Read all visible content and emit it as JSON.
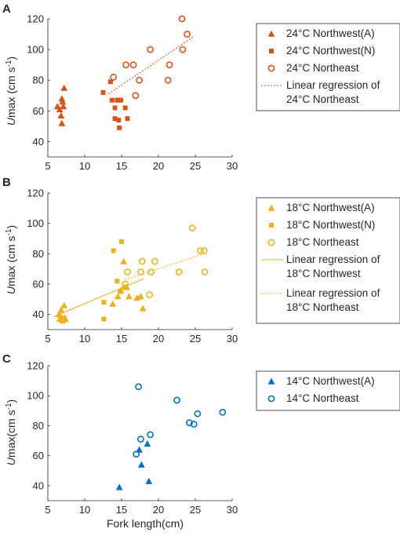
{
  "figure": {
    "x_axis_label": "Fork length(cm)",
    "y_axis_label_italic": "U",
    "y_axis_label_rest": "max (cm s",
    "y_axis_label_sup": "-1",
    "y_axis_label_close": ")",
    "y_axis_label_c_rest": "max(cm s"
  },
  "chart_data": [
    {
      "panel": "A",
      "type": "scatter",
      "xlim": [
        5,
        30
      ],
      "ylim": [
        30,
        120
      ],
      "x_ticks": [
        5,
        10,
        15,
        20,
        25,
        30
      ],
      "y_ticks": [
        40,
        60,
        80,
        100,
        120
      ],
      "x_tick_labels": [
        "5",
        "10",
        "15",
        "20",
        "25",
        "30"
      ],
      "y_tick_labels": [
        "40",
        "60",
        "80",
        "100",
        "120"
      ],
      "color": "#D95319",
      "series": [
        {
          "name": "24°C Northwest(A)",
          "marker": "triangle",
          "points": [
            [
              6.3,
              63
            ],
            [
              6.6,
              61
            ],
            [
              6.8,
              57
            ],
            [
              6.9,
              52
            ],
            [
              6.9,
              68
            ],
            [
              7.0,
              66
            ],
            [
              7.1,
              63
            ],
            [
              7.2,
              75
            ]
          ]
        },
        {
          "name": "24°C Northwest(N)",
          "marker": "square",
          "points": [
            [
              12.5,
              72
            ],
            [
              13.5,
              79
            ],
            [
              13.7,
              67
            ],
            [
              14.1,
              62
            ],
            [
              14.1,
              55
            ],
            [
              14.4,
              67
            ],
            [
              14.6,
              67
            ],
            [
              14.6,
              54
            ],
            [
              14.7,
              49
            ],
            [
              14.9,
              67
            ],
            [
              15.5,
              62
            ],
            [
              15.8,
              55
            ]
          ]
        },
        {
          "name": "24°C Northeast",
          "marker": "circle",
          "points": [
            [
              13.9,
              82
            ],
            [
              15.6,
              90
            ],
            [
              16.6,
              90
            ],
            [
              16.9,
              70
            ],
            [
              17.4,
              80
            ],
            [
              18.9,
              100
            ],
            [
              21.3,
              80
            ],
            [
              21.5,
              90
            ],
            [
              23.2,
              120
            ],
            [
              23.3,
              100
            ],
            [
              23.9,
              110
            ]
          ]
        }
      ],
      "lines": [
        {
          "name": "Linear regression of\n24°C Northeast",
          "style": "dotted",
          "x": [
            13.2,
            24.8
          ],
          "y": [
            71.0,
            108.5
          ]
        }
      ],
      "legend": {
        "position": "right",
        "items": [
          {
            "text": "24°C Northwest(A)"
          },
          {
            "text": "24°C Northwest(N)"
          },
          {
            "text": "24°C Northeast"
          },
          {
            "text1": "Linear regression of",
            "text2": "24°C Northeast"
          }
        ]
      }
    },
    {
      "panel": "B",
      "type": "scatter",
      "xlim": [
        5,
        30
      ],
      "ylim": [
        30,
        120
      ],
      "x_ticks": [
        5,
        10,
        15,
        20,
        25,
        30
      ],
      "y_ticks": [
        40,
        60,
        80,
        100,
        120
      ],
      "x_tick_labels": [
        "5",
        "10",
        "15",
        "20",
        "25",
        "30"
      ],
      "y_tick_labels": [
        "40",
        "60",
        "80",
        "100",
        "120"
      ],
      "color": "#EDB120",
      "series": [
        {
          "name": "18°C Northwest(A)",
          "marker": "triangle",
          "points": [
            [
              6.5,
              40
            ],
            [
              6.6,
              37
            ],
            [
              6.8,
              43
            ],
            [
              6.9,
              38
            ],
            [
              7.0,
              36
            ],
            [
              7.2,
              46
            ],
            [
              7.3,
              38
            ],
            [
              7.4,
              37
            ],
            [
              13.8,
              47
            ],
            [
              14.5,
              52
            ],
            [
              14.9,
              56
            ],
            [
              15.3,
              75
            ],
            [
              15.7,
              58
            ],
            [
              16.0,
              52
            ],
            [
              17.1,
              51
            ],
            [
              17.6,
              52
            ],
            [
              17.9,
              44
            ]
          ]
        },
        {
          "name": "18°C Northwest(N)",
          "marker": "square",
          "points": [
            [
              12.6,
              48
            ],
            [
              12.6,
              37
            ],
            [
              13.9,
              82
            ],
            [
              14.4,
              62
            ],
            [
              14.8,
              55
            ],
            [
              15.0,
              88
            ],
            [
              15.4,
              58
            ]
          ]
        },
        {
          "name": "18°C Northeast",
          "marker": "circle",
          "points": [
            [
              15.5,
              60
            ],
            [
              15.8,
              68
            ],
            [
              17.6,
              68
            ],
            [
              17.8,
              75
            ],
            [
              18.8,
              53
            ],
            [
              19.0,
              68
            ],
            [
              19.5,
              75
            ],
            [
              22.8,
              68
            ],
            [
              24.6,
              97
            ],
            [
              25.7,
              82
            ],
            [
              26.2,
              82
            ],
            [
              26.3,
              68
            ]
          ]
        }
      ],
      "lines": [
        {
          "name": "Linear regression of\n18°C Northwest",
          "style": "solid",
          "x": [
            5.8,
            18.0
          ],
          "y": [
            38.5,
            63.5
          ]
        },
        {
          "name": "Linear regression of\n18°C Northeast",
          "style": "dotted",
          "x": [
            15.5,
            26.5
          ],
          "y": [
            63.0,
            80.5
          ]
        }
      ],
      "legend": {
        "position": "right",
        "items": [
          {
            "text": "18°C Northwest(A)"
          },
          {
            "text": "18°C Northwest(N)"
          },
          {
            "text": "18°C Northeast"
          },
          {
            "text1": "Linear regression of",
            "text2": "18°C Northwest"
          },
          {
            "text1": "Linear regression of",
            "text2": "18°C Northeast"
          }
        ]
      }
    },
    {
      "panel": "C",
      "type": "scatter",
      "xlim": [
        5,
        30
      ],
      "ylim": [
        30,
        120
      ],
      "x_ticks": [
        5,
        10,
        15,
        20,
        25,
        30
      ],
      "y_ticks": [
        40,
        60,
        80,
        100,
        120
      ],
      "x_tick_labels": [
        "5",
        "10",
        "15",
        "20",
        "25",
        "30"
      ],
      "y_tick_labels": [
        "40",
        "60",
        "80",
        "100",
        "120"
      ],
      "color": "#0072BD",
      "series": [
        {
          "name": "14°C Northwest(A)",
          "marker": "triangle",
          "points": [
            [
              14.7,
              39
            ],
            [
              17.4,
              64
            ],
            [
              17.7,
              54
            ],
            [
              18.5,
              68
            ],
            [
              18.7,
              43
            ]
          ]
        },
        {
          "name": "14°C Northeast",
          "marker": "circle",
          "points": [
            [
              17.0,
              61
            ],
            [
              17.3,
              106
            ],
            [
              17.6,
              71
            ],
            [
              18.9,
              74
            ],
            [
              22.5,
              97
            ],
            [
              24.2,
              82
            ],
            [
              24.8,
              81
            ],
            [
              25.3,
              88
            ],
            [
              28.7,
              89
            ]
          ]
        }
      ],
      "lines": [],
      "legend": {
        "position": "right",
        "items": [
          {
            "text": "14°C Northwest(A)"
          },
          {
            "text": "14°C Northeast"
          }
        ]
      }
    }
  ]
}
